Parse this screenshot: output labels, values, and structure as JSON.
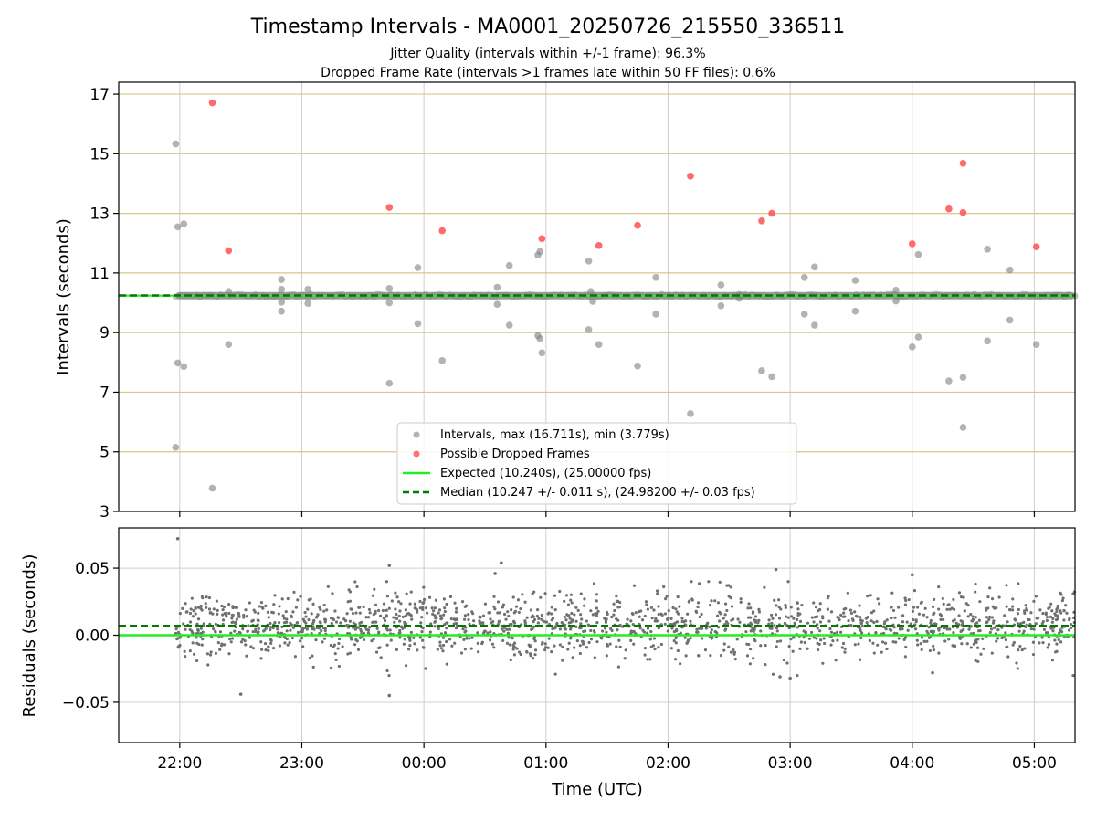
{
  "chart_data": [
    {
      "type": "scatter",
      "title": "Timestamp Intervals - MA0001_20250726_215550_336511",
      "subtitle_lines": [
        "Jitter Quality (intervals within +/-1 frame): 96.3%",
        "Dropped Frame Rate (intervals >1 frames late within 50 FF files): 0.6%"
      ],
      "xlabel": "",
      "ylabel": "Intervals (seconds)",
      "x_unit": "time (UTC)",
      "xlim": [
        "21:30",
        "05:20"
      ],
      "ylim": [
        3,
        17.4
      ],
      "yticks": [
        3,
        5,
        7,
        9,
        11,
        13,
        15,
        17
      ],
      "grid": true,
      "legend_position": "lower-center",
      "series": [
        {
          "name": "Intervals, max (16.711s), min (3.779s)",
          "color": "#808080",
          "baseline_band": {
            "x_start": "21:58",
            "x_end": "05:20",
            "y": 10.24
          },
          "points": [
            {
              "x": "21:58",
              "y": 15.33
            },
            {
              "x": "21:59",
              "y": 12.55
            },
            {
              "x": "22:02",
              "y": 12.65
            },
            {
              "x": "21:58",
              "y": 5.15
            },
            {
              "x": "21:59",
              "y": 7.98
            },
            {
              "x": "22:02",
              "y": 7.86
            },
            {
              "x": "22:16",
              "y": 3.78
            },
            {
              "x": "22:24",
              "y": 10.38
            },
            {
              "x": "22:24",
              "y": 8.6
            },
            {
              "x": "22:50",
              "y": 10.78
            },
            {
              "x": "22:50",
              "y": 10.45
            },
            {
              "x": "22:50",
              "y": 10.02
            },
            {
              "x": "22:50",
              "y": 9.72
            },
            {
              "x": "23:03",
              "y": 10.45
            },
            {
              "x": "23:03",
              "y": 9.98
            },
            {
              "x": "23:43",
              "y": 10.48
            },
            {
              "x": "23:43",
              "y": 10.0
            },
            {
              "x": "23:43",
              "y": 7.3
            },
            {
              "x": "23:57",
              "y": 11.18
            },
            {
              "x": "23:57",
              "y": 9.3
            },
            {
              "x": "00:09",
              "y": 8.06
            },
            {
              "x": "00:36",
              "y": 10.52
            },
            {
              "x": "00:36",
              "y": 9.95
            },
            {
              "x": "00:42",
              "y": 11.25
            },
            {
              "x": "00:42",
              "y": 9.25
            },
            {
              "x": "00:56",
              "y": 11.6
            },
            {
              "x": "00:57",
              "y": 11.72
            },
            {
              "x": "00:56",
              "y": 8.9
            },
            {
              "x": "00:57",
              "y": 8.8
            },
            {
              "x": "00:58",
              "y": 8.32
            },
            {
              "x": "01:21",
              "y": 11.4
            },
            {
              "x": "01:22",
              "y": 10.38
            },
            {
              "x": "01:23",
              "y": 10.05
            },
            {
              "x": "01:21",
              "y": 9.1
            },
            {
              "x": "01:26",
              "y": 8.6
            },
            {
              "x": "01:45",
              "y": 7.88
            },
            {
              "x": "01:54",
              "y": 10.85
            },
            {
              "x": "01:54",
              "y": 9.62
            },
            {
              "x": "02:11",
              "y": 6.28
            },
            {
              "x": "02:26",
              "y": 10.6
            },
            {
              "x": "02:26",
              "y": 9.9
            },
            {
              "x": "02:35",
              "y": 10.28
            },
            {
              "x": "02:35",
              "y": 10.15
            },
            {
              "x": "02:46",
              "y": 7.72
            },
            {
              "x": "02:51",
              "y": 7.52
            },
            {
              "x": "03:07",
              "y": 10.85
            },
            {
              "x": "03:12",
              "y": 11.2
            },
            {
              "x": "03:07",
              "y": 9.62
            },
            {
              "x": "03:12",
              "y": 9.25
            },
            {
              "x": "03:32",
              "y": 10.75
            },
            {
              "x": "03:32",
              "y": 9.72
            },
            {
              "x": "03:52",
              "y": 10.42
            },
            {
              "x": "03:52",
              "y": 10.06
            },
            {
              "x": "04:00",
              "y": 8.52
            },
            {
              "x": "04:03",
              "y": 11.62
            },
            {
              "x": "04:03",
              "y": 8.85
            },
            {
              "x": "04:18",
              "y": 7.38
            },
            {
              "x": "04:25",
              "y": 7.5
            },
            {
              "x": "04:25",
              "y": 5.82
            },
            {
              "x": "04:37",
              "y": 11.8
            },
            {
              "x": "04:37",
              "y": 8.72
            },
            {
              "x": "04:48",
              "y": 11.1
            },
            {
              "x": "04:48",
              "y": 9.42
            },
            {
              "x": "05:01",
              "y": 8.6
            }
          ]
        },
        {
          "name": "Possible Dropped Frames",
          "color": "#ff5050",
          "points": [
            {
              "x": "22:16",
              "y": 16.71
            },
            {
              "x": "22:24",
              "y": 11.75
            },
            {
              "x": "23:43",
              "y": 13.2
            },
            {
              "x": "00:09",
              "y": 12.42
            },
            {
              "x": "00:58",
              "y": 12.15
            },
            {
              "x": "01:26",
              "y": 11.92
            },
            {
              "x": "01:45",
              "y": 12.6
            },
            {
              "x": "02:11",
              "y": 14.25
            },
            {
              "x": "02:46",
              "y": 12.75
            },
            {
              "x": "02:51",
              "y": 13.0
            },
            {
              "x": "04:00",
              "y": 11.98
            },
            {
              "x": "04:18",
              "y": 13.15
            },
            {
              "x": "04:25",
              "y": 14.68
            },
            {
              "x": "04:25",
              "y": 13.03
            },
            {
              "x": "05:01",
              "y": 11.88
            }
          ]
        },
        {
          "name": "Expected (10.240s), (25.00000 fps)",
          "type": "line",
          "color": "#22ee22",
          "y": 10.24
        },
        {
          "name": "Median (10.247 +/- 0.011 s), (24.98200 +/- 0.03 fps)",
          "type": "line",
          "style": "dashed",
          "color": "#007a00",
          "y": 10.247
        }
      ]
    },
    {
      "type": "scatter",
      "title": "",
      "xlabel": "Time (UTC)",
      "ylabel": "Residuals (seconds)",
      "xlim": [
        "21:30",
        "05:20"
      ],
      "ylim": [
        -0.08,
        0.08
      ],
      "xticks": [
        "22:00",
        "23:00",
        "00:00",
        "01:00",
        "02:00",
        "03:00",
        "04:00",
        "05:00"
      ],
      "yticks": [
        0.05,
        0.0,
        -0.05
      ],
      "ytick_labels": [
        "0.05",
        "0.00",
        "−0.05"
      ],
      "grid": true,
      "series": [
        {
          "name": "",
          "color": "#707070",
          "distribution": {
            "x_start": "21:58",
            "x_end": "05:20",
            "count": 1700,
            "center": 0.007,
            "spread": 0.012
          },
          "outliers": [
            {
              "x": "21:59",
              "y": 0.072
            },
            {
              "x": "22:30",
              "y": -0.044
            },
            {
              "x": "23:43",
              "y": 0.052
            },
            {
              "x": "23:43",
              "y": -0.045
            },
            {
              "x": "00:38",
              "y": 0.054
            },
            {
              "x": "00:35",
              "y": 0.046
            },
            {
              "x": "02:53",
              "y": 0.049
            },
            {
              "x": "03:00",
              "y": -0.032
            },
            {
              "x": "02:55",
              "y": -0.031
            },
            {
              "x": "04:10",
              "y": -0.028
            },
            {
              "x": "04:00",
              "y": 0.045
            }
          ]
        },
        {
          "name": "",
          "type": "line",
          "color": "#22ee22",
          "y": 0.0
        },
        {
          "name": "",
          "type": "line",
          "style": "dashed",
          "color": "#007a00",
          "y": 0.007
        }
      ]
    }
  ]
}
